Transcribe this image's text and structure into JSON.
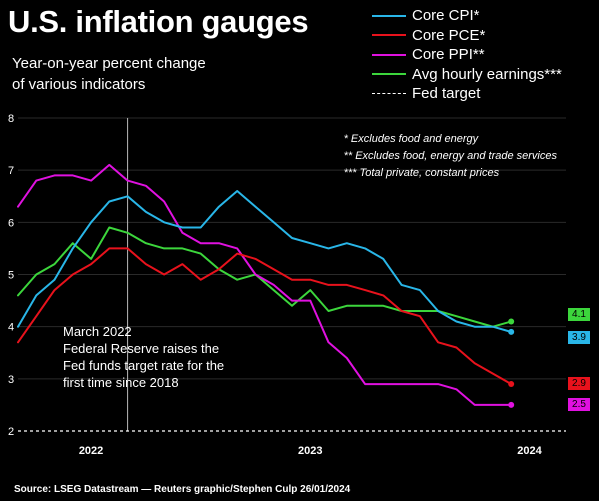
{
  "header": {
    "title": "U.S. inflation gauges",
    "subtitle_line1": "Year-on-year percent change",
    "subtitle_line2": "of various indicators"
  },
  "notes": [
    "* Excludes food and energy",
    "** Excludes food, energy and trade services",
    "*** Total private, constant prices"
  ],
  "annotation": [
    "March 2022",
    "Federal Reserve raises the",
    "Fed funds target rate for the",
    "first time since 2018"
  ],
  "source": "Source: LSEG Datastream — Reuters graphic/Stephen Culp 26/01/2024",
  "chart_data": {
    "type": "line",
    "x_axis": {
      "ticks": [
        "2022",
        "2023",
        "2024"
      ],
      "tick_dates": [
        "2022-01",
        "2023-01",
        "2024-01"
      ],
      "range": [
        "2021-09",
        "2024-03"
      ]
    },
    "y_axis": {
      "ticks": [
        2,
        3,
        4,
        5,
        6,
        7,
        8
      ],
      "range": [
        2,
        8
      ]
    },
    "x": [
      "2021-09",
      "2021-10",
      "2021-11",
      "2021-12",
      "2022-01",
      "2022-02",
      "2022-03",
      "2022-04",
      "2022-05",
      "2022-06",
      "2022-07",
      "2022-08",
      "2022-09",
      "2022-10",
      "2022-11",
      "2022-12",
      "2023-01",
      "2023-02",
      "2023-03",
      "2023-04",
      "2023-05",
      "2023-06",
      "2023-07",
      "2023-08",
      "2023-09",
      "2023-10",
      "2023-11",
      "2023-12"
    ],
    "series": [
      {
        "name": "Core CPI*",
        "color": "#29b6e8",
        "end_label": "3.9",
        "values": [
          4.0,
          4.6,
          4.9,
          5.5,
          6.0,
          6.4,
          6.5,
          6.2,
          6.0,
          5.9,
          5.9,
          6.3,
          6.6,
          6.3,
          6.0,
          5.7,
          5.6,
          5.5,
          5.6,
          5.5,
          5.3,
          4.8,
          4.7,
          4.3,
          4.1,
          4.0,
          4.0,
          3.9
        ]
      },
      {
        "name": "Core PCE*",
        "color": "#e8121c",
        "end_label": "2.9",
        "values": [
          3.7,
          4.2,
          4.7,
          5.0,
          5.2,
          5.5,
          5.5,
          5.2,
          5.0,
          5.2,
          4.9,
          5.1,
          5.4,
          5.3,
          5.1,
          4.9,
          4.9,
          4.8,
          4.8,
          4.7,
          4.6,
          4.3,
          4.2,
          3.7,
          3.6,
          3.3,
          3.1,
          2.9
        ]
      },
      {
        "name": "Core PPI**",
        "color": "#e011e0",
        "end_label": "2.5",
        "values": [
          6.3,
          6.8,
          6.9,
          6.9,
          6.8,
          7.1,
          6.8,
          6.7,
          6.4,
          5.8,
          5.6,
          5.6,
          5.5,
          5.0,
          4.8,
          4.5,
          4.5,
          3.7,
          3.4,
          2.9,
          2.9,
          2.9,
          2.9,
          2.9,
          2.8,
          2.5,
          2.5,
          2.5
        ]
      },
      {
        "name": "Avg hourly earnings***",
        "color": "#3cd63c",
        "end_label": "4.1",
        "values": [
          4.6,
          5.0,
          5.2,
          5.6,
          5.3,
          5.9,
          5.8,
          5.6,
          5.5,
          5.5,
          5.4,
          5.1,
          4.9,
          5.0,
          4.7,
          4.4,
          4.7,
          4.3,
          4.4,
          4.4,
          4.4,
          4.3,
          4.3,
          4.3,
          4.2,
          4.1,
          4.0,
          4.1
        ]
      }
    ],
    "fed_target": {
      "name": "Fed target",
      "value": 2
    },
    "event_marker": {
      "date": "2022-03"
    }
  }
}
